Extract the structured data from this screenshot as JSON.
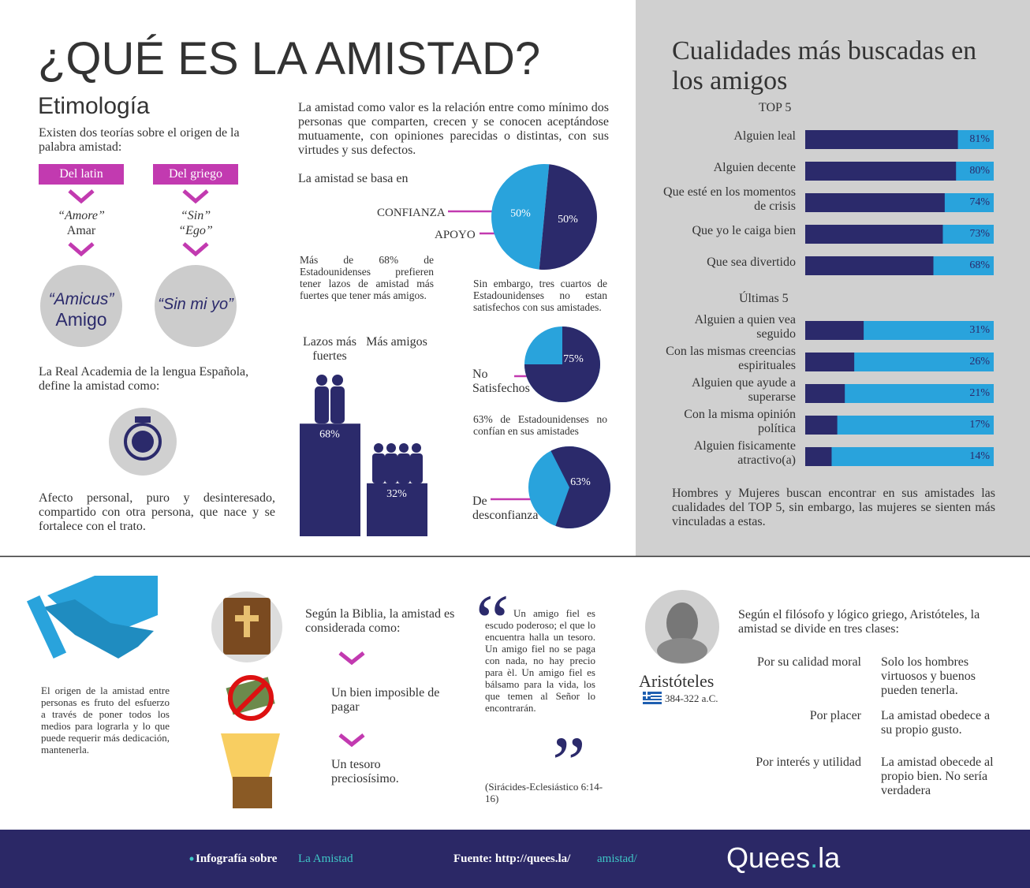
{
  "title": "¿QUÉ ES LA AMISTAD?",
  "etymology": {
    "heading": "Etimología",
    "intro": "Existen dos teorías sobre el origen de la palabra amistad:",
    "latin": {
      "label": "Del latin",
      "word": "“Amore”",
      "meaning": "Amar",
      "result": "“Amicus”",
      "result_meaning": "Amigo"
    },
    "greek": {
      "label": "Del griego",
      "word": "“Sin”",
      "meaning": "“Ego”",
      "result": "“Sin mi yo”"
    },
    "rae_intro": "La Real Academia de la lengua Española, define la amistad como:",
    "definition": "Afecto personal, puro y desinteresado, compartido con otra persona, que nace y se fortalece con el trato."
  },
  "definition_text": "La amistad como valor es la relación entre como mínimo dos personas que comparten, crecen y se conocen aceptándose mutuamente, con opiniones parecidas o distintas, con sus virtudes y sus defectos.",
  "basis": {
    "title": "La amistad se basa en",
    "chart": {
      "type": "pie",
      "categories": [
        "CONFIANZA",
        "APOYO"
      ],
      "values": [
        50,
        50
      ],
      "value_labels": [
        "50%",
        "50%"
      ],
      "colors": [
        "#29a3dc",
        "#2b2a6b"
      ]
    }
  },
  "bonds": {
    "text": "Más de 68% de Estadounidenses prefieren tener lazos de amistad más fuertes que tener más amigos.",
    "chart": {
      "type": "bar",
      "categories": [
        "Lazos más fuertes",
        "Más amigos"
      ],
      "values": [
        68,
        32
      ],
      "value_labels": [
        "68%",
        "32%"
      ],
      "color": "#2b2a6b"
    }
  },
  "satisfaction": {
    "text": "Sin embargo, tres cuartos de Estadounidenses no estan satisfechos con sus amistades.",
    "chart": {
      "type": "pie",
      "categories": [
        "No Satisfechos"
      ],
      "values": [
        75
      ],
      "value_labels": [
        "75%"
      ],
      "color": "#2b2a6b",
      "rest_color": "#29a3dc"
    }
  },
  "distrust": {
    "text": "63% de Estadounidenses no confían en sus amistades",
    "chart": {
      "type": "pie",
      "categories": [
        "De desconfianza"
      ],
      "values": [
        63
      ],
      "value_labels": [
        "63%"
      ],
      "color": "#2b2a6b",
      "rest_color": "#29a3dc"
    }
  },
  "qualities": {
    "title": "Cualidades más buscadas en los amigos",
    "top": {
      "heading": "TOP 5",
      "chart": {
        "type": "hbar",
        "categories": [
          "Alguien leal",
          "Alguien decente",
          "Que esté en los momentos de crisis",
          "Que yo le caiga bien",
          "Que sea divertido"
        ],
        "values": [
          81,
          80,
          74,
          73,
          68
        ],
        "value_labels": [
          "81%",
          "80%",
          "74%",
          "73%",
          "68%"
        ],
        "color": "#2b2a6b",
        "rest_color": "#29a3dc"
      }
    },
    "bottom": {
      "heading": "Últimas 5",
      "chart": {
        "type": "hbar",
        "categories": [
          "Alguien a quien vea seguido",
          "Con las mismas creencias espirituales",
          "Alguien que ayude a superarse",
          "Con la misma opinión política",
          "Alguien fisicamente atractivo(a)"
        ],
        "values": [
          31,
          26,
          21,
          17,
          14
        ],
        "value_labels": [
          "31%",
          "26%",
          "21%",
          "17%",
          "14%"
        ],
        "color": "#2b2a6b",
        "rest_color": "#29a3dc"
      }
    },
    "note": "Hombres y Mujeres buscan encontrar en sus amistades las cualidades del TOP 5, sin embargo, las mujeres se sienten más vinculadas a estas."
  },
  "origin_text": "El origen de la amistad entre personas es fruto del esfuerzo a través de poner todos los medios para lograrla y lo que puede requerir más dedicación, mantenerla.",
  "bible": {
    "intro": "Según la Biblia, la amistad es considerada como:",
    "items": [
      "Un bien imposible de pagar",
      "Un tesoro preciosísimo."
    ],
    "quote": "Un amigo fiel es escudo poderoso; el que lo encuentra halla un tesoro. Un amigo fiel no se paga con nada, no hay precio para èl. Un amigo fiel es bálsamo para la vida, los que temen al Señor lo encontrarán.",
    "source": "(Sirácides-Eclesiástico 6:14-16)"
  },
  "aristotle": {
    "name": "Aristóteles",
    "dates": "384-322 a.C.",
    "intro": "Según el filósofo y lógico griego, Aristóteles, la amistad se divide en tres clases:",
    "classes": [
      {
        "name": "Por su calidad moral",
        "description": "Solo los hombres virtuosos y buenos pueden tenerla."
      },
      {
        "name": "Por placer",
        "description": "La amistad obedece a su propio gusto."
      },
      {
        "name": "Por interés y utilidad",
        "description": "La amistad obecede al propio bien. No sería verdadera"
      }
    ]
  },
  "footer": {
    "label": "Infografía sobre",
    "topic": "La Amistad",
    "source_label": "Fuente: http://quees.la/",
    "source_path": "amistad/",
    "logo": [
      "Quees",
      ".",
      "la"
    ]
  }
}
